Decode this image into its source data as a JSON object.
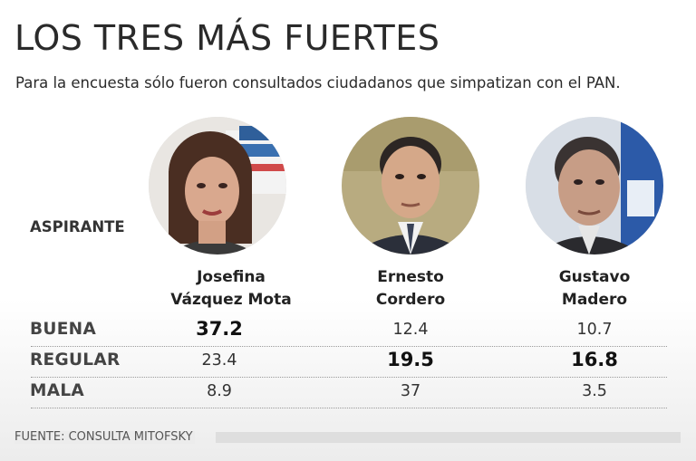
{
  "title": "LOS TRES MÁS FUERTES",
  "subtitle": "Para la encuesta sólo fueron consultados ciudadanos que simpatizan con el PAN.",
  "aspirante_label": "ASPIRANTE",
  "source": "FUENTE: CONSULTA MITOFSKY",
  "candidates": [
    {
      "first": "Josefina",
      "second": "Vázquez Mota"
    },
    {
      "first": "Ernesto",
      "second": "Cordero"
    },
    {
      "first": "Gustavo",
      "second": "Madero"
    }
  ],
  "chart_data": {
    "type": "table",
    "title": "LOS TRES MÁS FUERTES",
    "columns": [
      "Josefina Vázquez Mota",
      "Ernesto Cordero",
      "Gustavo Madero"
    ],
    "rows": [
      {
        "label": "BUENA",
        "values": [
          "37.2",
          "12.4",
          "10.7"
        ],
        "highlight": 0
      },
      {
        "label": "REGULAR",
        "values": [
          "23.4",
          "19.5",
          "16.8"
        ],
        "highlight": [
          1,
          2
        ]
      },
      {
        "label": "MALA",
        "values": [
          "8.9",
          "37",
          "3.5"
        ],
        "highlight": null
      }
    ]
  }
}
